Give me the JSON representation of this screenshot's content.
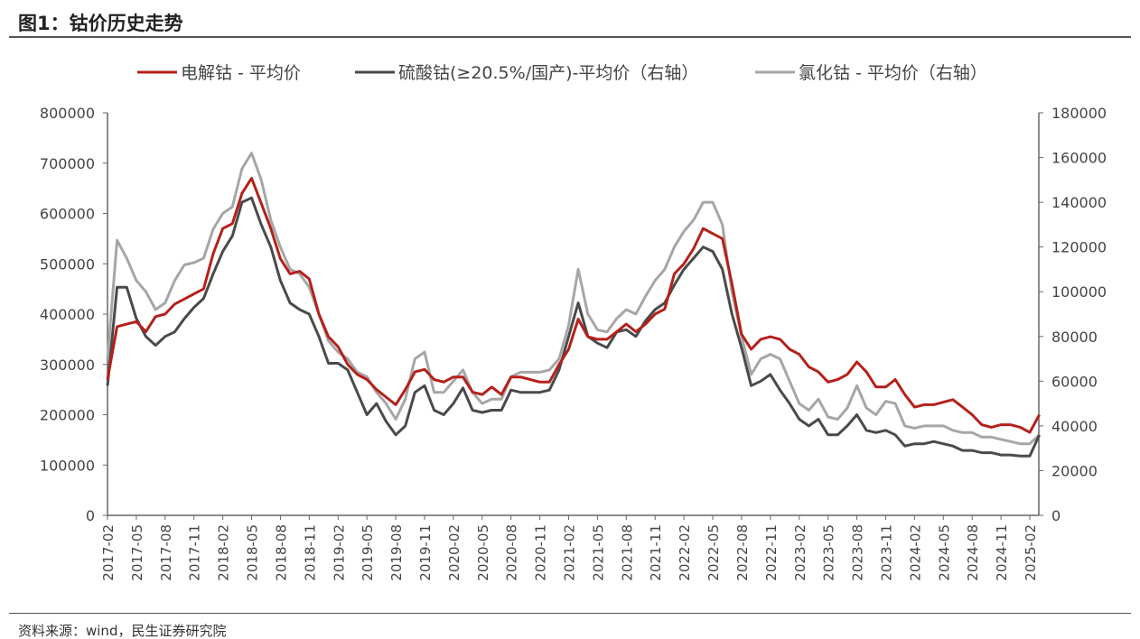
{
  "title": "图1：钴价历史走势",
  "source": "资料来源：wind，民生证券研究院",
  "chart_data": {
    "type": "line",
    "title": "钴价历史走势",
    "x_start": "2017-02",
    "x_tick_labels": [
      "2017-02",
      "2017-05",
      "2017-08",
      "2017-11",
      "2018-02",
      "2018-05",
      "2018-08",
      "2018-11",
      "2019-02",
      "2019-05",
      "2019-08",
      "2019-11",
      "2020-02",
      "2020-05",
      "2020-08",
      "2020-11",
      "2021-02",
      "2021-05",
      "2021-08",
      "2021-11",
      "2022-02",
      "2022-05",
      "2022-08",
      "2022-11",
      "2023-02",
      "2023-05",
      "2023-08",
      "2023-11",
      "2024-02",
      "2024-05",
      "2024-08",
      "2024-11",
      "2025-02"
    ],
    "y_left": {
      "min": 0,
      "max": 800000,
      "ticks": [
        "0",
        "100000",
        "200000",
        "300000",
        "400000",
        "500000",
        "600000",
        "700000",
        "800000"
      ]
    },
    "y_right": {
      "min": 0,
      "max": 180000,
      "ticks": [
        "0",
        "20000",
        "40000",
        "60000",
        "80000",
        "100000",
        "120000",
        "140000",
        "160000",
        "180000"
      ]
    },
    "legend_position": "top",
    "series": [
      {
        "name": "电解钴 - 平均价",
        "axis": "left",
        "color": "#b5201b",
        "values": [
          270000,
          375000,
          380000,
          385000,
          365000,
          395000,
          400000,
          420000,
          430000,
          440000,
          450000,
          520000,
          570000,
          580000,
          640000,
          670000,
          620000,
          570000,
          510000,
          480000,
          485000,
          470000,
          400000,
          355000,
          335000,
          300000,
          280000,
          270000,
          250000,
          235000,
          220000,
          250000,
          285000,
          290000,
          270000,
          265000,
          275000,
          275000,
          245000,
          240000,
          255000,
          240000,
          275000,
          275000,
          270000,
          265000,
          265000,
          300000,
          330000,
          390000,
          355000,
          350000,
          350000,
          365000,
          380000,
          365000,
          380000,
          400000,
          410000,
          480000,
          500000,
          530000,
          570000,
          560000,
          550000,
          460000,
          360000,
          330000,
          350000,
          355000,
          350000,
          330000,
          320000,
          295000,
          285000,
          265000,
          270000,
          280000,
          305000,
          285000,
          255000,
          255000,
          270000,
          240000,
          215000,
          220000,
          220000,
          225000,
          230000,
          215000,
          200000,
          180000,
          175000,
          180000,
          180000,
          175000,
          165000,
          200000
        ]
      },
      {
        "name": "硫酸钴(≥20.5%/国产)-平均价（右轴）",
        "axis": "right",
        "color": "#4a4a4a",
        "values": [
          58000,
          102000,
          102000,
          88000,
          80000,
          76000,
          80000,
          82000,
          88000,
          93000,
          97000,
          108000,
          118000,
          125000,
          140000,
          142000,
          130000,
          120000,
          105000,
          95000,
          92000,
          90000,
          80000,
          68000,
          68000,
          65000,
          55000,
          45000,
          50000,
          42000,
          36000,
          40000,
          55000,
          58000,
          47000,
          45000,
          50000,
          57000,
          47000,
          46000,
          47000,
          47000,
          56000,
          55000,
          55000,
          55000,
          56000,
          65000,
          80000,
          95000,
          80000,
          77000,
          75000,
          82000,
          83000,
          80000,
          87000,
          92000,
          95000,
          103000,
          110000,
          115000,
          120000,
          118000,
          110000,
          90000,
          75000,
          58000,
          60000,
          63000,
          56000,
          50000,
          43000,
          40000,
          43000,
          36000,
          36000,
          40000,
          45000,
          38000,
          37000,
          38000,
          36000,
          31000,
          32000,
          32000,
          33000,
          32000,
          31000,
          29000,
          29000,
          28000,
          28000,
          27000,
          27000,
          26500,
          26500,
          36000
        ]
      },
      {
        "name": "氯化钴 - 平均价（右轴）",
        "axis": "right",
        "color": "#a6a6a6",
        "values": [
          70000,
          123000,
          115000,
          105000,
          100000,
          92000,
          95000,
          105000,
          112000,
          113000,
          115000,
          128000,
          135000,
          138000,
          155000,
          162000,
          150000,
          132000,
          120000,
          110000,
          108000,
          102000,
          90000,
          78000,
          73000,
          70000,
          64000,
          62000,
          55000,
          50000,
          43000,
          52000,
          70000,
          73000,
          55000,
          55000,
          60000,
          65000,
          55000,
          50000,
          52000,
          52000,
          62000,
          64000,
          64000,
          64000,
          65000,
          70000,
          85000,
          110000,
          90000,
          83000,
          82000,
          88000,
          92000,
          90000,
          98000,
          105000,
          110000,
          120000,
          127000,
          132000,
          140000,
          140000,
          130000,
          100000,
          80000,
          63000,
          70000,
          72000,
          70000,
          60000,
          50000,
          47000,
          52000,
          44000,
          43000,
          48000,
          58000,
          48000,
          45000,
          51000,
          50000,
          40000,
          39000,
          40000,
          40000,
          40000,
          38000,
          37000,
          37000,
          35000,
          35000,
          34000,
          33000,
          32000,
          32000,
          36000
        ]
      }
    ]
  }
}
